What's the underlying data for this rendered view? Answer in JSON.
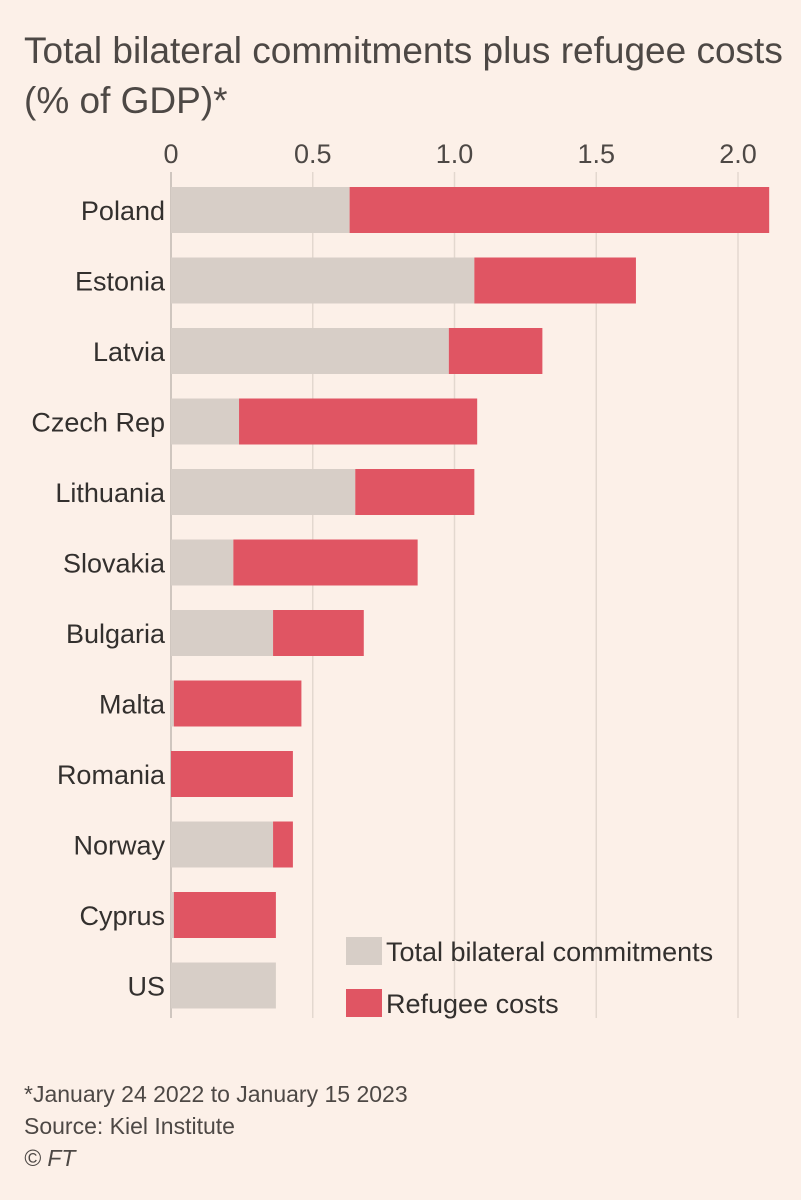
{
  "chart_data": {
    "type": "bar",
    "orientation": "horizontal",
    "stacked": true,
    "title": "Total bilateral commitments plus refugee costs (% of GDP)*",
    "categories": [
      "Poland",
      "Estonia",
      "Latvia",
      "Czech Rep",
      "Lithuania",
      "Slovakia",
      "Bulgaria",
      "Malta",
      "Romania",
      "Norway",
      "Cyprus",
      "US"
    ],
    "series": [
      {
        "name": "Total bilateral commitments",
        "color": "#d7cec7",
        "values": [
          0.63,
          1.07,
          0.98,
          0.24,
          0.65,
          0.22,
          0.36,
          0.01,
          0.0,
          0.36,
          0.01,
          0.37
        ]
      },
      {
        "name": "Refugee costs",
        "color": "#e05563",
        "values": [
          1.48,
          0.57,
          0.33,
          0.84,
          0.42,
          0.65,
          0.32,
          0.45,
          0.43,
          0.07,
          0.36,
          0.0
        ]
      }
    ],
    "xlim": [
      0,
      2.1
    ],
    "xticks": [
      0,
      0.5,
      1.0,
      1.5,
      2.0
    ],
    "xtick_labels": [
      "0",
      "0.5",
      "1.0",
      "1.5",
      "2.0"
    ],
    "xlabel": "",
    "ylabel": "",
    "grid": true,
    "axis_position": "top",
    "legend_position": "bottom-right"
  },
  "footnotes": {
    "note": "*January 24 2022 to January 15 2023",
    "source": "Source: Kiel Institute",
    "credit": "© FT"
  }
}
